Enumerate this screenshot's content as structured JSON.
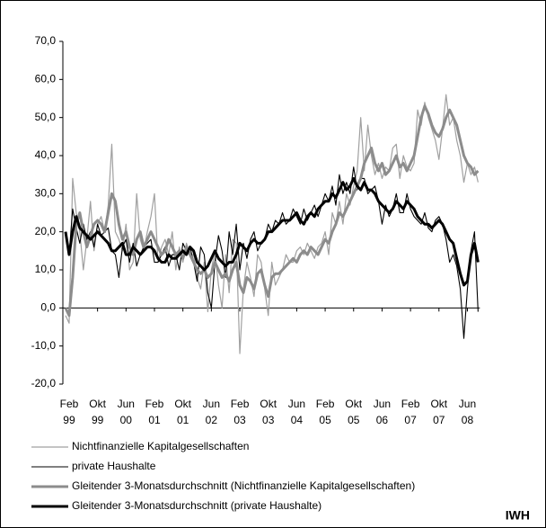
{
  "chart_data": {
    "type": "line",
    "annotations": [
      "IWH"
    ],
    "categories": [
      null,
      "Feb 99",
      null,
      null,
      null,
      null,
      null,
      null,
      null,
      "Okt 99",
      null,
      null,
      null,
      null,
      null,
      null,
      null,
      "Jun 00",
      null,
      null,
      null,
      null,
      null,
      null,
      null,
      "Feb 01",
      null,
      null,
      null,
      null,
      null,
      null,
      null,
      "Okt 01",
      null,
      null,
      null,
      null,
      null,
      null,
      null,
      "Jun 02",
      null,
      null,
      null,
      null,
      null,
      null,
      null,
      "Feb 03",
      null,
      null,
      null,
      null,
      null,
      null,
      null,
      "Okt 03",
      null,
      null,
      null,
      null,
      null,
      null,
      null,
      "Jun 04",
      null,
      null,
      null,
      null,
      null,
      null,
      null,
      "Feb 05",
      null,
      null,
      null,
      null,
      null,
      null,
      null,
      "Okt 05",
      null,
      null,
      null,
      null,
      null,
      null,
      null,
      "Jun 06",
      null,
      null,
      null,
      null,
      null,
      null,
      null,
      "Feb 07",
      null,
      null,
      null,
      null,
      null,
      null,
      null,
      "Okt 07",
      null,
      null,
      null,
      null,
      null,
      null,
      null,
      "Jun 08",
      null,
      null,
      null
    ],
    "series": [
      {
        "name": "Nichtfinanzielle Kapitalgesellschaften",
        "color": "#a0a0a0",
        "width": 1.2,
        "values": [
          -2,
          -4,
          34,
          25,
          20,
          10,
          18,
          28,
          15,
          22,
          24,
          20,
          27,
          43,
          20,
          18,
          15,
          22,
          10,
          12,
          30,
          18,
          15,
          20,
          24,
          30,
          12,
          16,
          18,
          14,
          20,
          10,
          16,
          12,
          17,
          14,
          14,
          8,
          5,
          12,
          -1,
          10,
          15,
          6,
          0,
          14,
          4,
          18,
          17,
          -12,
          5,
          12,
          8,
          3,
          14,
          12,
          5,
          -2,
          12,
          6,
          8,
          10,
          14,
          12,
          12,
          15,
          16,
          14,
          17,
          15,
          13,
          16,
          17,
          20,
          14,
          25,
          22,
          28,
          22,
          30,
          27,
          32,
          36,
          50,
          36,
          48,
          40,
          35,
          38,
          34,
          37,
          36,
          42,
          43,
          34,
          40,
          37,
          36,
          38,
          52,
          48,
          54,
          50,
          47,
          44,
          39,
          47,
          56,
          48,
          50,
          44,
          40,
          33,
          38,
          35,
          37,
          33
        ]
      },
      {
        "name": "private Haushalte",
        "color": "#000000",
        "width": 1.1,
        "values": [
          20,
          14,
          26,
          21,
          17,
          22,
          18,
          20,
          16,
          22,
          19,
          20,
          21,
          15,
          14,
          8,
          16,
          18,
          12,
          17,
          11,
          14,
          16,
          17,
          18,
          12,
          12,
          14,
          16,
          11,
          14,
          14,
          10,
          17,
          15,
          16,
          12,
          7,
          16,
          14,
          4,
          0,
          12,
          19,
          15,
          8,
          20,
          14,
          22,
          10,
          17,
          13,
          18,
          20,
          15,
          17,
          18,
          22,
          20,
          23,
          22,
          25,
          22,
          23,
          26,
          24,
          22,
          26,
          23,
          25,
          27,
          24,
          27,
          30,
          28,
          32,
          27,
          35,
          30,
          33,
          30,
          37,
          31,
          34,
          34,
          30,
          31,
          32,
          28,
          22,
          27,
          24,
          26,
          30,
          25,
          25,
          30,
          26,
          24,
          23,
          22,
          25,
          21,
          20,
          23,
          24,
          22,
          18,
          12,
          14,
          11,
          5,
          -8,
          5,
          15,
          20,
          -1
        ]
      },
      {
        "name": "Gleitender 3-Monatsdurchschnitt (Nichtfinanzielle Kapitalgesellschaften)",
        "color": "#8c8c8c",
        "width": 3,
        "values": [
          0,
          -2,
          8,
          22,
          25,
          20,
          16,
          19,
          22,
          23,
          22,
          20,
          25,
          30,
          28,
          22,
          18,
          20,
          16,
          14,
          18,
          20,
          16,
          18,
          20,
          18,
          16,
          14,
          15,
          18,
          16,
          14,
          15,
          13,
          16,
          14,
          12,
          10,
          9,
          10,
          8,
          9,
          12,
          10,
          8,
          9,
          7,
          10,
          12,
          6,
          4,
          8,
          7,
          5,
          9,
          10,
          6,
          3,
          8,
          9,
          9,
          10,
          11,
          12,
          13,
          12,
          14,
          15,
          14,
          16,
          15,
          14,
          16,
          18,
          17,
          20,
          22,
          25,
          24,
          26,
          28,
          30,
          32,
          34,
          38,
          40,
          42,
          38,
          36,
          38,
          35,
          36,
          38,
          40,
          37,
          38,
          36,
          38,
          40,
          45,
          50,
          53,
          51,
          48,
          46,
          45,
          47,
          50,
          52,
          50,
          48,
          44,
          40,
          38,
          37,
          35,
          36
        ]
      },
      {
        "name": "Gleitender 3-Monatsdurchschnitt (private Haushalte)",
        "color": "#000000",
        "width": 3,
        "values": [
          20,
          14,
          20,
          24,
          21,
          20,
          19,
          18,
          19,
          20,
          19,
          18,
          17,
          15,
          15,
          16,
          17,
          14,
          14,
          16,
          15,
          14,
          15,
          16,
          16,
          15,
          13,
          12,
          12,
          14,
          13,
          13,
          14,
          15,
          14,
          16,
          15,
          12,
          11,
          10,
          11,
          13,
          15,
          13,
          12,
          11,
          12,
          12,
          14,
          17,
          16,
          15,
          17,
          18,
          17,
          17,
          18,
          20,
          20,
          21,
          22,
          23,
          23,
          23,
          24,
          25,
          23,
          22,
          24,
          25,
          24,
          26,
          27,
          28,
          28,
          30,
          29,
          31,
          33,
          31,
          32,
          34,
          32,
          31,
          33,
          31,
          31,
          30,
          28,
          27,
          26,
          25,
          26,
          28,
          27,
          26,
          28,
          27,
          26,
          24,
          23,
          22,
          22,
          21,
          22,
          23,
          22,
          20,
          18,
          17,
          13,
          9,
          6,
          7,
          14,
          17,
          12
        ]
      }
    ],
    "ylim": [
      -20,
      70
    ],
    "yticks": [
      {
        "value": -20,
        "label": "-20,0"
      },
      {
        "value": -10,
        "label": "-10,0"
      },
      {
        "value": 0,
        "label": "0,0"
      },
      {
        "value": 10,
        "label": "10,0"
      },
      {
        "value": 20,
        "label": "20,0"
      },
      {
        "value": 30,
        "label": "30,0"
      },
      {
        "value": 40,
        "label": "40,0"
      },
      {
        "value": 50,
        "label": "50,0"
      },
      {
        "value": 60,
        "label": "60,0"
      },
      {
        "value": 70,
        "label": "70,0"
      }
    ],
    "grid": false
  }
}
